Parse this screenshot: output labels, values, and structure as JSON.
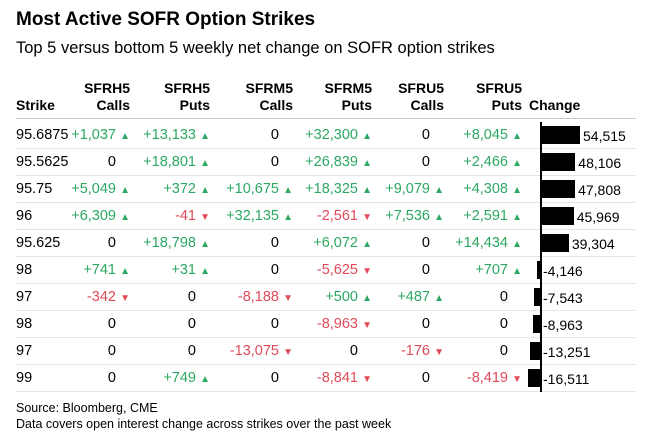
{
  "title": "Most Active SOFR Option Strikes",
  "subtitle": "Top 5 versus bottom 5 weekly net change on SOFR option strikes",
  "source": "Source: Bloomberg, CME",
  "note": "Data covers open interest change across strikes over the past week",
  "colors": {
    "positive": "#2ca862",
    "negative": "#e04a59",
    "bar": "#000000"
  },
  "icons": {
    "up": "triangle-up-icon",
    "down": "triangle-down-icon"
  },
  "chart_data": {
    "type": "table",
    "columns": [
      {
        "line1": "",
        "line2": "Strike"
      },
      {
        "line1": "SFRH5",
        "line2": "Calls"
      },
      {
        "line1": "SFRH5",
        "line2": "Puts"
      },
      {
        "line1": "SFRM5",
        "line2": "Calls"
      },
      {
        "line1": "SFRM5",
        "line2": "Puts"
      },
      {
        "line1": "SFRU5",
        "line2": "Calls"
      },
      {
        "line1": "SFRU5",
        "line2": "Puts"
      },
      {
        "line1": "",
        "line2": "Change"
      }
    ],
    "rows": [
      {
        "strike": "95.6875",
        "cells": [
          "+1,037",
          "+13,133",
          "0",
          "+32,300",
          "0",
          "+8,045"
        ],
        "change": 54515,
        "change_label": "54,515"
      },
      {
        "strike": "95.5625",
        "cells": [
          "0",
          "+18,801",
          "0",
          "+26,839",
          "0",
          "+2,466"
        ],
        "change": 48106,
        "change_label": "48,106"
      },
      {
        "strike": "95.75",
        "cells": [
          "+5,049",
          "+372",
          "+10,675",
          "+18,325",
          "+9,079",
          "+4,308"
        ],
        "change": 47808,
        "change_label": "47,808"
      },
      {
        "strike": "96",
        "cells": [
          "+6,309",
          "-41",
          "+32,135",
          "-2,561",
          "+7,536",
          "+2,591"
        ],
        "change": 45969,
        "change_label": "45,969"
      },
      {
        "strike": "95.625",
        "cells": [
          "0",
          "+18,798",
          "0",
          "+6,072",
          "0",
          "+14,434"
        ],
        "change": 39304,
        "change_label": "39,304"
      },
      {
        "strike": "98",
        "cells": [
          "+741",
          "+31",
          "0",
          "-5,625",
          "0",
          "+707"
        ],
        "change": -4146,
        "change_label": "-4,146"
      },
      {
        "strike": "97",
        "cells": [
          "-342",
          "0",
          "-8,188",
          "+500",
          "+487",
          "0"
        ],
        "change": -7543,
        "change_label": "-7,543"
      },
      {
        "strike": "98",
        "cells": [
          "0",
          "0",
          "0",
          "-8,963",
          "0",
          "0"
        ],
        "change": -8963,
        "change_label": "-8,963"
      },
      {
        "strike": "97",
        "cells": [
          "0",
          "0",
          "-13,075",
          "0",
          "-176",
          "0"
        ],
        "change": -13251,
        "change_label": "-13,251"
      },
      {
        "strike": "99",
        "cells": [
          "0",
          "+749",
          "0",
          "-8,841",
          "0",
          "-8,419"
        ],
        "change": -16511,
        "change_label": "-16,511"
      }
    ]
  }
}
